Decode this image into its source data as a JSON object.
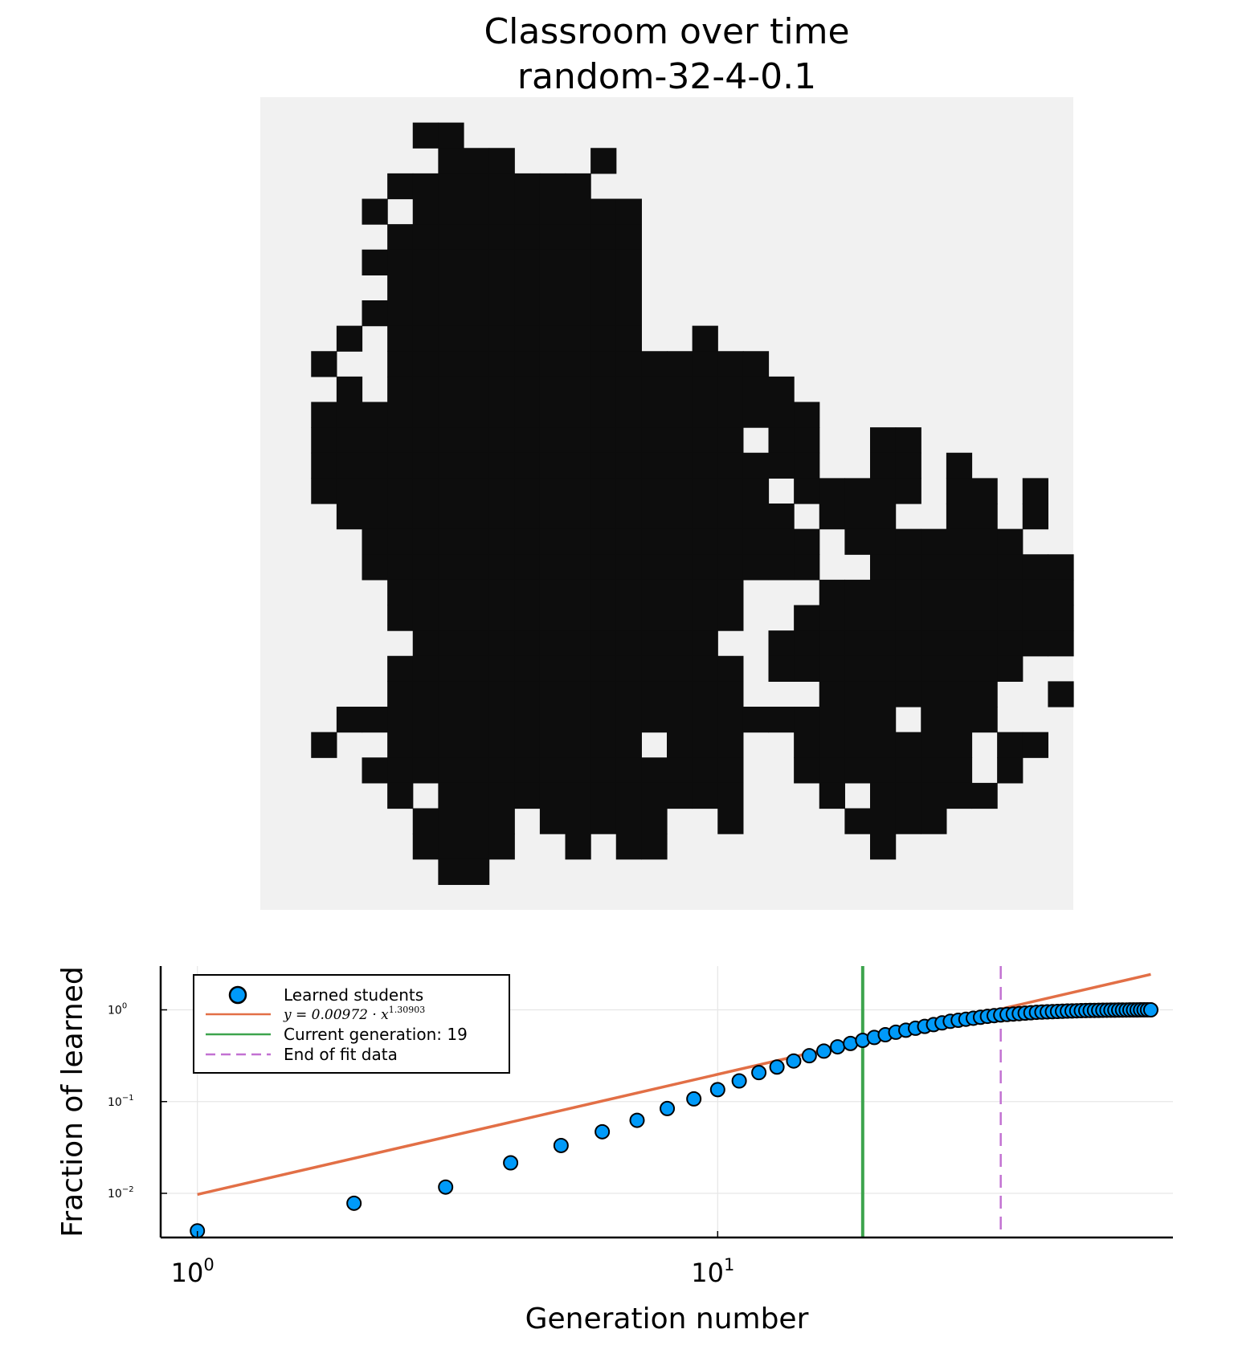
{
  "figure": {
    "title_line1": "Classroom over time",
    "title_line2": "random-32-4-0.1"
  },
  "grid_panel": {
    "background_color": "#f1f1f1",
    "cell_color": "#0d0d0d",
    "rows": [
      "                                ",
      "      ..                        ",
      "       ...   .                  ",
      "     ........                   ",
      "    . .........                 ",
      "     ..........                 ",
      "    ...........                 ",
      "     ..........                 ",
      "    ...........                 ",
      "   . ..........  .              ",
      "  .  ...............            ",
      "   . ................           ",
      "  ....................          ",
      "  ................. ..  ..      ",
      "  ....................  .. .    ",
      "  .................. ..... .. . ",
      "   .................. ...  .. . ",
      "    .................. .......  ",
      "    ..................  ......... ",
      "     ..............   ..........",
      "     ..............  ...........",
      "      ............  ............",
      "     .............. .......... ",
      "     ..............   .......  .",
      "   ...................... ...   ",
      "  .  .......... ...  ....... .. ",
      "    ...............  ....... .  ",
      "     . ............   . .....   ",
      "      .... .....  .    ....     ",
      "      ....  . ..        .       ",
      "       ..                       ",
      "                                "
    ]
  },
  "chart_data": {
    "type": "scatter",
    "xlabel": "Generation number",
    "ylabel": "Fraction of learned",
    "xscale": "log10",
    "yscale": "log10",
    "xlim": [
      0.85,
      75
    ],
    "ylim": [
      0.0033,
      3.0
    ],
    "xticks": [
      {
        "base": "10",
        "exp": "0",
        "value": 1
      },
      {
        "base": "10",
        "exp": "1",
        "value": 10
      }
    ],
    "yticks": [
      {
        "base": "10",
        "exp": "−2",
        "value": 0.01
      },
      {
        "base": "10",
        "exp": "−1",
        "value": 0.1
      },
      {
        "base": "10",
        "exp": "0",
        "value": 1
      }
    ],
    "grid": true,
    "legend_position": "top-left",
    "series": [
      {
        "name": "Learned students",
        "kind": "scatter",
        "color": "#009af9",
        "x": [
          1,
          2,
          3,
          4,
          5,
          6,
          7,
          8,
          9,
          10,
          11,
          12,
          13,
          14,
          15,
          16,
          17,
          18,
          19,
          20,
          21,
          22,
          23,
          24,
          25,
          26,
          27,
          28,
          29,
          30,
          31,
          32,
          33,
          34,
          35,
          36,
          37,
          38,
          39,
          40,
          41,
          42,
          43,
          44,
          45,
          46,
          47,
          48,
          49,
          50,
          51,
          52,
          53,
          54,
          55,
          56,
          57,
          58,
          59,
          60,
          61,
          62,
          63,
          64,
          65,
          66,
          67,
          68
        ],
        "y": [
          0.0039,
          0.0078,
          0.0117,
          0.0215,
          0.0332,
          0.0469,
          0.0625,
          0.084,
          0.107,
          0.135,
          0.168,
          0.207,
          0.238,
          0.277,
          0.316,
          0.355,
          0.395,
          0.43,
          0.465,
          0.5,
          0.535,
          0.57,
          0.6,
          0.63,
          0.66,
          0.69,
          0.72,
          0.75,
          0.77,
          0.79,
          0.81,
          0.83,
          0.85,
          0.865,
          0.88,
          0.89,
          0.9,
          0.91,
          0.92,
          0.93,
          0.94,
          0.945,
          0.95,
          0.955,
          0.96,
          0.965,
          0.97,
          0.973,
          0.976,
          0.979,
          0.982,
          0.984,
          0.986,
          0.988,
          0.99,
          0.991,
          0.992,
          0.993,
          0.994,
          0.995,
          0.996,
          0.997,
          0.998,
          0.998,
          0.999,
          0.999,
          1.0,
          1.0
        ]
      },
      {
        "name": "y = 0.00972 · x^1.30903",
        "kind": "fit-line",
        "color": "#e26f46",
        "coefficient": 0.00972,
        "exponent": 1.30903,
        "x_range": [
          1,
          68
        ]
      },
      {
        "name": "Current generation: 19",
        "kind": "vline",
        "color": "#3da44d",
        "x": 19
      },
      {
        "name": "End of fit data",
        "kind": "vline-dashed",
        "color": "#c271d2",
        "x": 35
      }
    ],
    "legend": {
      "learned": "Learned students",
      "fit_prefix": "y = 0.00972 · x",
      "fit_exp": "1.30903",
      "current": "Current generation: 19",
      "end": "End of fit data"
    }
  }
}
